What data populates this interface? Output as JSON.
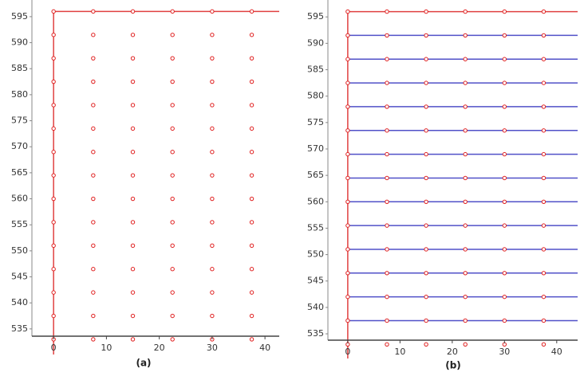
{
  "chart_data": [
    {
      "type": "scatter",
      "title": "(a)",
      "columns": [
        0,
        7.5,
        15,
        22.5,
        30,
        37.5
      ],
      "rows": [
        596,
        591.5,
        587,
        582.5,
        578,
        573.5,
        569,
        564.5,
        560,
        555.5,
        551,
        546.5,
        542,
        537.5,
        533
      ],
      "color": "#e02020",
      "xlim": [
        -4.1,
        42.7
      ],
      "ylim": [
        533.6,
        598.2
      ],
      "xticks": [
        0,
        10,
        20,
        30,
        40
      ],
      "yticks": [
        535,
        540,
        545,
        550,
        555,
        560,
        565,
        570,
        575,
        580,
        585,
        590,
        595
      ],
      "vlines": [
        {
          "x": 0,
          "color": "#e04040"
        }
      ],
      "hlines": [
        {
          "y": 596,
          "color": "#e04040"
        }
      ]
    },
    {
      "type": "scatter",
      "title": "(b)",
      "columns": [
        0,
        7.5,
        15,
        22.5,
        30,
        37.5
      ],
      "rows": [
        596,
        591.5,
        587,
        582.5,
        578,
        573.5,
        569,
        564.5,
        560,
        555.5,
        551,
        546.5,
        542,
        537.5,
        533
      ],
      "color": "#e02020",
      "xlim": [
        -3.8,
        44.0
      ],
      "ylim": [
        533.8,
        598.2
      ],
      "xticks": [
        0,
        10,
        20,
        30,
        40
      ],
      "yticks": [
        535,
        540,
        545,
        550,
        555,
        560,
        565,
        570,
        575,
        580,
        585,
        590,
        595
      ],
      "vlines": [
        {
          "x": 0,
          "color": "#e04040"
        }
      ],
      "hlines": [
        {
          "y": 596,
          "color": "#e04040"
        },
        {
          "y": 591.5,
          "color": "#5050c8"
        },
        {
          "y": 587,
          "color": "#5050c8"
        },
        {
          "y": 582.5,
          "color": "#5050c8"
        },
        {
          "y": 578,
          "color": "#5050c8"
        },
        {
          "y": 573.5,
          "color": "#5050c8"
        },
        {
          "y": 569,
          "color": "#5050c8"
        },
        {
          "y": 564.5,
          "color": "#5050c8"
        },
        {
          "y": 560,
          "color": "#5050c8"
        },
        {
          "y": 555.5,
          "color": "#5050c8"
        },
        {
          "y": 551,
          "color": "#5050c8"
        },
        {
          "y": 546.5,
          "color": "#5050c8"
        },
        {
          "y": 542,
          "color": "#5050c8"
        },
        {
          "y": 537.5,
          "color": "#5050c8"
        }
      ]
    }
  ]
}
